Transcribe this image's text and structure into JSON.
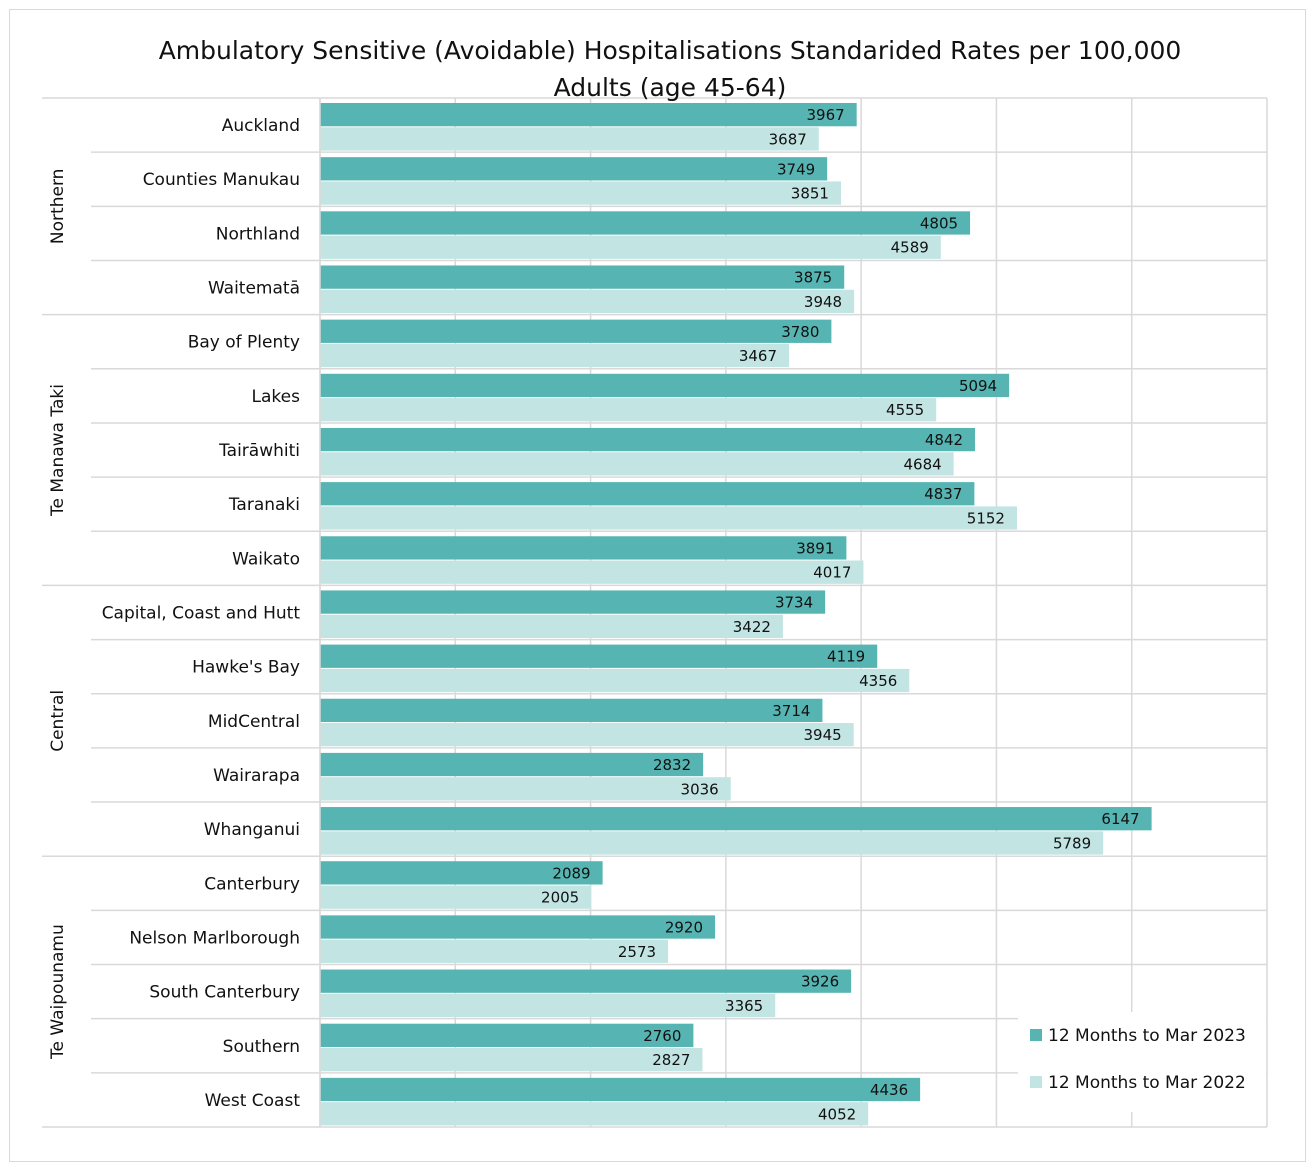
{
  "chart_data": {
    "type": "bar",
    "orientation": "horizontal",
    "title": "Ambulatory Sensitive (Avoidable) Hospitalisations Standarided Rates per 100,000 Adults (age 45-64)",
    "groups": [
      {
        "label": "Northern",
        "categories": [
          "Auckland",
          "Counties Manukau",
          "Northland",
          "Waitematā"
        ]
      },
      {
        "label": "Te Manawa Taki",
        "categories": [
          "Bay of Plenty",
          "Lakes",
          "Tairāwhiti",
          "Taranaki",
          "Waikato"
        ]
      },
      {
        "label": "Central",
        "categories": [
          "Capital, Coast and Hutt",
          "Hawke's Bay",
          "MidCentral",
          "Wairarapa",
          "Whanganui"
        ]
      },
      {
        "label": "Te Waipounamu",
        "categories": [
          "Canterbury",
          "Nelson Marlborough",
          "South Canterbury",
          "Southern",
          "West Coast"
        ]
      }
    ],
    "series": [
      {
        "name": "12 Months to Mar 2023",
        "color": "#56b5b2",
        "values": [
          3967,
          3749,
          4805,
          3875,
          3780,
          5094,
          4842,
          4837,
          3891,
          3734,
          4119,
          3714,
          2832,
          6147,
          2089,
          2920,
          3926,
          2760,
          4436
        ]
      },
      {
        "name": "12 Months to Mar 2022",
        "color": "#c2e5e4",
        "values": [
          3687,
          3851,
          4589,
          3948,
          3467,
          4555,
          4684,
          5152,
          4017,
          3422,
          4356,
          3945,
          3036,
          5789,
          2005,
          2573,
          3365,
          2827,
          4052
        ]
      }
    ],
    "xlim": [
      0,
      7000
    ],
    "xticks": [
      0,
      1000,
      2000,
      3000,
      4000,
      5000,
      6000,
      7000
    ],
    "grid": true,
    "legend": "lower right"
  }
}
